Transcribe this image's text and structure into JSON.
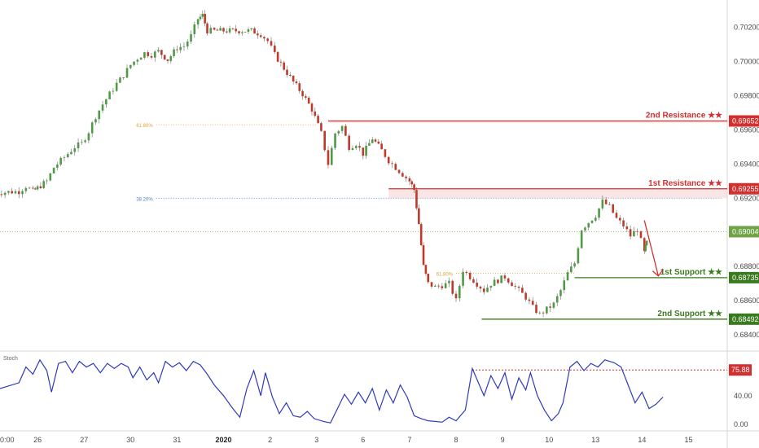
{
  "chart_data": {
    "type": "candlestick",
    "price_axis": {
      "ticks": [
        "0.70200",
        "0.70000",
        "0.69800",
        "0.69600",
        "0.69400",
        "0.69200",
        "0.68800",
        "0.68600",
        "0.68400"
      ],
      "tick_values": [
        0.702,
        0.7,
        0.698,
        0.696,
        0.694,
        0.692,
        0.688,
        0.686,
        0.684
      ],
      "range": [
        0.6831,
        0.7036
      ],
      "current_price": "0.69004",
      "current_value": 0.69004
    },
    "time_axis": {
      "ticks": [
        "0:00",
        "26",
        "27",
        "30",
        "31",
        "2020",
        "2",
        "3",
        "6",
        "7",
        "8",
        "9",
        "10",
        "13",
        "14",
        "15"
      ],
      "tick_index": [
        0,
        1,
        2,
        3,
        4,
        5,
        6,
        7,
        8,
        9,
        10,
        11,
        12,
        13,
        14,
        15
      ]
    },
    "candles_close_path": [
      [
        0.0,
        0.6923
      ],
      [
        0.3,
        0.69235
      ],
      [
        0.6,
        0.6924
      ],
      [
        0.75,
        0.6927
      ],
      [
        0.9,
        0.6924
      ],
      [
        1.0,
        0.6926
      ],
      [
        1.2,
        0.693
      ],
      [
        1.35,
        0.6938
      ],
      [
        1.5,
        0.6942
      ],
      [
        1.65,
        0.6946
      ],
      [
        1.8,
        0.695
      ],
      [
        1.95,
        0.6952
      ],
      [
        2.1,
        0.6959
      ],
      [
        2.25,
        0.6968
      ],
      [
        2.4,
        0.6975
      ],
      [
        2.55,
        0.6981
      ],
      [
        2.7,
        0.6987
      ],
      [
        2.85,
        0.6992
      ],
      [
        3.0,
        0.6998
      ],
      [
        3.15,
        0.7002
      ],
      [
        3.3,
        0.7005
      ],
      [
        3.45,
        0.7004
      ],
      [
        3.6,
        0.7006
      ],
      [
        3.8,
        0.7001
      ],
      [
        4.0,
        0.7008
      ],
      [
        4.15,
        0.7009
      ],
      [
        4.3,
        0.7015
      ],
      [
        4.45,
        0.7025
      ],
      [
        4.55,
        0.7027
      ],
      [
        4.65,
        0.7018
      ],
      [
        4.8,
        0.7018
      ],
      [
        5.2,
        0.7018
      ],
      [
        5.6,
        0.7018
      ],
      [
        5.8,
        0.7016
      ],
      [
        5.95,
        0.7012
      ],
      [
        6.1,
        0.7004
      ],
      [
        6.3,
        0.6996
      ],
      [
        6.5,
        0.6988
      ],
      [
        6.7,
        0.6981
      ],
      [
        6.9,
        0.6972
      ],
      [
        7.1,
        0.6958
      ],
      [
        7.25,
        0.694
      ],
      [
        7.4,
        0.6958
      ],
      [
        7.55,
        0.6962
      ],
      [
        7.7,
        0.695
      ],
      [
        7.85,
        0.6952
      ],
      [
        8.0,
        0.6946
      ],
      [
        8.2,
        0.6955
      ],
      [
        8.4,
        0.6948
      ],
      [
        8.55,
        0.6942
      ],
      [
        8.7,
        0.6938
      ],
      [
        8.85,
        0.6934
      ],
      [
        9.0,
        0.693
      ],
      [
        9.1,
        0.6925
      ],
      [
        9.2,
        0.6905
      ],
      [
        9.3,
        0.688
      ],
      [
        9.4,
        0.687
      ],
      [
        9.55,
        0.6868
      ],
      [
        9.7,
        0.6869
      ],
      [
        9.85,
        0.687
      ],
      [
        10.0,
        0.686
      ],
      [
        10.15,
        0.6878
      ],
      [
        10.3,
        0.6874
      ],
      [
        10.45,
        0.687
      ],
      [
        10.6,
        0.6866
      ],
      [
        10.75,
        0.687
      ],
      [
        10.9,
        0.6872
      ],
      [
        11.05,
        0.6874
      ],
      [
        11.2,
        0.687
      ],
      [
        11.35,
        0.6866
      ],
      [
        11.5,
        0.6862
      ],
      [
        11.65,
        0.6856
      ],
      [
        11.8,
        0.6852
      ],
      [
        11.95,
        0.6855
      ],
      [
        12.1,
        0.6858
      ],
      [
        12.25,
        0.6866
      ],
      [
        12.4,
        0.6876
      ],
      [
        12.55,
        0.6882
      ],
      [
        12.7,
        0.6902
      ],
      [
        12.85,
        0.6906
      ],
      [
        13.0,
        0.691
      ],
      [
        13.15,
        0.6918
      ],
      [
        13.3,
        0.6915
      ],
      [
        13.45,
        0.6908
      ],
      [
        13.6,
        0.6904
      ],
      [
        13.75,
        0.6898
      ],
      [
        13.9,
        0.6902
      ],
      [
        14.05,
        0.6888
      ],
      [
        14.1,
        0.6894
      ]
    ],
    "fib_levels": [
      {
        "label": "61.80%",
        "price": 0.6963,
        "from": 3.55,
        "to": 7.0,
        "color": "#d6a33a"
      },
      {
        "label": "38.20%",
        "price": 0.692,
        "from": 3.55,
        "to": 15.7,
        "color": "#4f7fc2"
      },
      {
        "label": "61.80%",
        "price": 0.6876,
        "from": 10.0,
        "to": 12.55,
        "color": "#d6a33a"
      }
    ],
    "levels": [
      {
        "label": "2nd Resistance ★★",
        "tag": "0.69652",
        "price": 0.69652,
        "from": 7.25,
        "color": "#d32f2f"
      },
      {
        "label": "1st Resistance ★★",
        "tag": "0.69255",
        "price": 0.69255,
        "from": 8.55,
        "color": "#d32f2f"
      },
      {
        "label": "1st Support ★★",
        "tag": "0.68735",
        "price": 0.68735,
        "from": 12.55,
        "color": "#3a7a1e"
      },
      {
        "label": "2nd Support ★★",
        "tag": "0.68492",
        "price": 0.68492,
        "from": 10.55,
        "color": "#3a7a1e"
      }
    ],
    "arrow": {
      "from": [
        14.05,
        0.6907
      ],
      "to": [
        14.35,
        0.68745
      ],
      "color": "#d32f2f"
    },
    "stoch": {
      "title": "Stoch",
      "ticks": [
        "40.00",
        "0.00"
      ],
      "tick_values": [
        40,
        0
      ],
      "level_tag": "75.88",
      "level": 75.88,
      "level_from": 10.35,
      "range": [
        -8,
        100
      ],
      "values": [
        [
          0.0,
          50
        ],
        [
          0.3,
          52
        ],
        [
          0.6,
          58
        ],
        [
          0.75,
          80
        ],
        [
          0.9,
          70
        ],
        [
          1.05,
          90
        ],
        [
          1.2,
          75
        ],
        [
          1.3,
          45
        ],
        [
          1.45,
          85
        ],
        [
          1.6,
          88
        ],
        [
          1.75,
          72
        ],
        [
          1.9,
          88
        ],
        [
          2.05,
          80
        ],
        [
          2.2,
          85
        ],
        [
          2.35,
          72
        ],
        [
          2.5,
          85
        ],
        [
          2.65,
          78
        ],
        [
          2.8,
          85
        ],
        [
          2.95,
          80
        ],
        [
          3.05,
          65
        ],
        [
          3.2,
          80
        ],
        [
          3.35,
          62
        ],
        [
          3.5,
          72
        ],
        [
          3.6,
          58
        ],
        [
          3.75,
          88
        ],
        [
          3.9,
          80
        ],
        [
          4.05,
          86
        ],
        [
          4.2,
          75
        ],
        [
          4.35,
          88
        ],
        [
          4.5,
          83
        ],
        [
          4.65,
          70
        ],
        [
          4.8,
          55
        ],
        [
          5.0,
          40
        ],
        [
          5.2,
          22
        ],
        [
          5.35,
          10
        ],
        [
          5.5,
          50
        ],
        [
          5.65,
          75
        ],
        [
          5.8,
          40
        ],
        [
          5.9,
          72
        ],
        [
          6.05,
          38
        ],
        [
          6.2,
          15
        ],
        [
          6.35,
          30
        ],
        [
          6.5,
          12
        ],
        [
          6.65,
          10
        ],
        [
          6.8,
          18
        ],
        [
          6.95,
          8
        ],
        [
          7.15,
          4
        ],
        [
          7.3,
          2
        ],
        [
          7.45,
          22
        ],
        [
          7.6,
          42
        ],
        [
          7.75,
          28
        ],
        [
          7.9,
          45
        ],
        [
          8.05,
          30
        ],
        [
          8.2,
          50
        ],
        [
          8.35,
          20
        ],
        [
          8.5,
          48
        ],
        [
          8.65,
          30
        ],
        [
          8.8,
          55
        ],
        [
          8.95,
          38
        ],
        [
          9.1,
          12
        ],
        [
          9.25,
          8
        ],
        [
          9.4,
          5
        ],
        [
          9.55,
          4
        ],
        [
          9.7,
          3
        ],
        [
          9.85,
          10
        ],
        [
          10.0,
          5
        ],
        [
          10.2,
          20
        ],
        [
          10.35,
          78
        ],
        [
          10.5,
          55
        ],
        [
          10.6,
          40
        ],
        [
          10.75,
          68
        ],
        [
          10.9,
          50
        ],
        [
          11.05,
          72
        ],
        [
          11.2,
          35
        ],
        [
          11.35,
          65
        ],
        [
          11.5,
          48
        ],
        [
          11.6,
          72
        ],
        [
          11.75,
          40
        ],
        [
          11.9,
          20
        ],
        [
          12.05,
          5
        ],
        [
          12.2,
          15
        ],
        [
          12.3,
          30
        ],
        [
          12.45,
          80
        ],
        [
          12.6,
          88
        ],
        [
          12.75,
          75
        ],
        [
          12.9,
          85
        ],
        [
          13.05,
          80
        ],
        [
          13.2,
          90
        ],
        [
          13.4,
          86
        ],
        [
          13.55,
          80
        ],
        [
          13.7,
          55
        ],
        [
          13.85,
          30
        ],
        [
          14.0,
          45
        ],
        [
          14.15,
          22
        ],
        [
          14.3,
          28
        ],
        [
          14.45,
          38
        ]
      ]
    }
  }
}
